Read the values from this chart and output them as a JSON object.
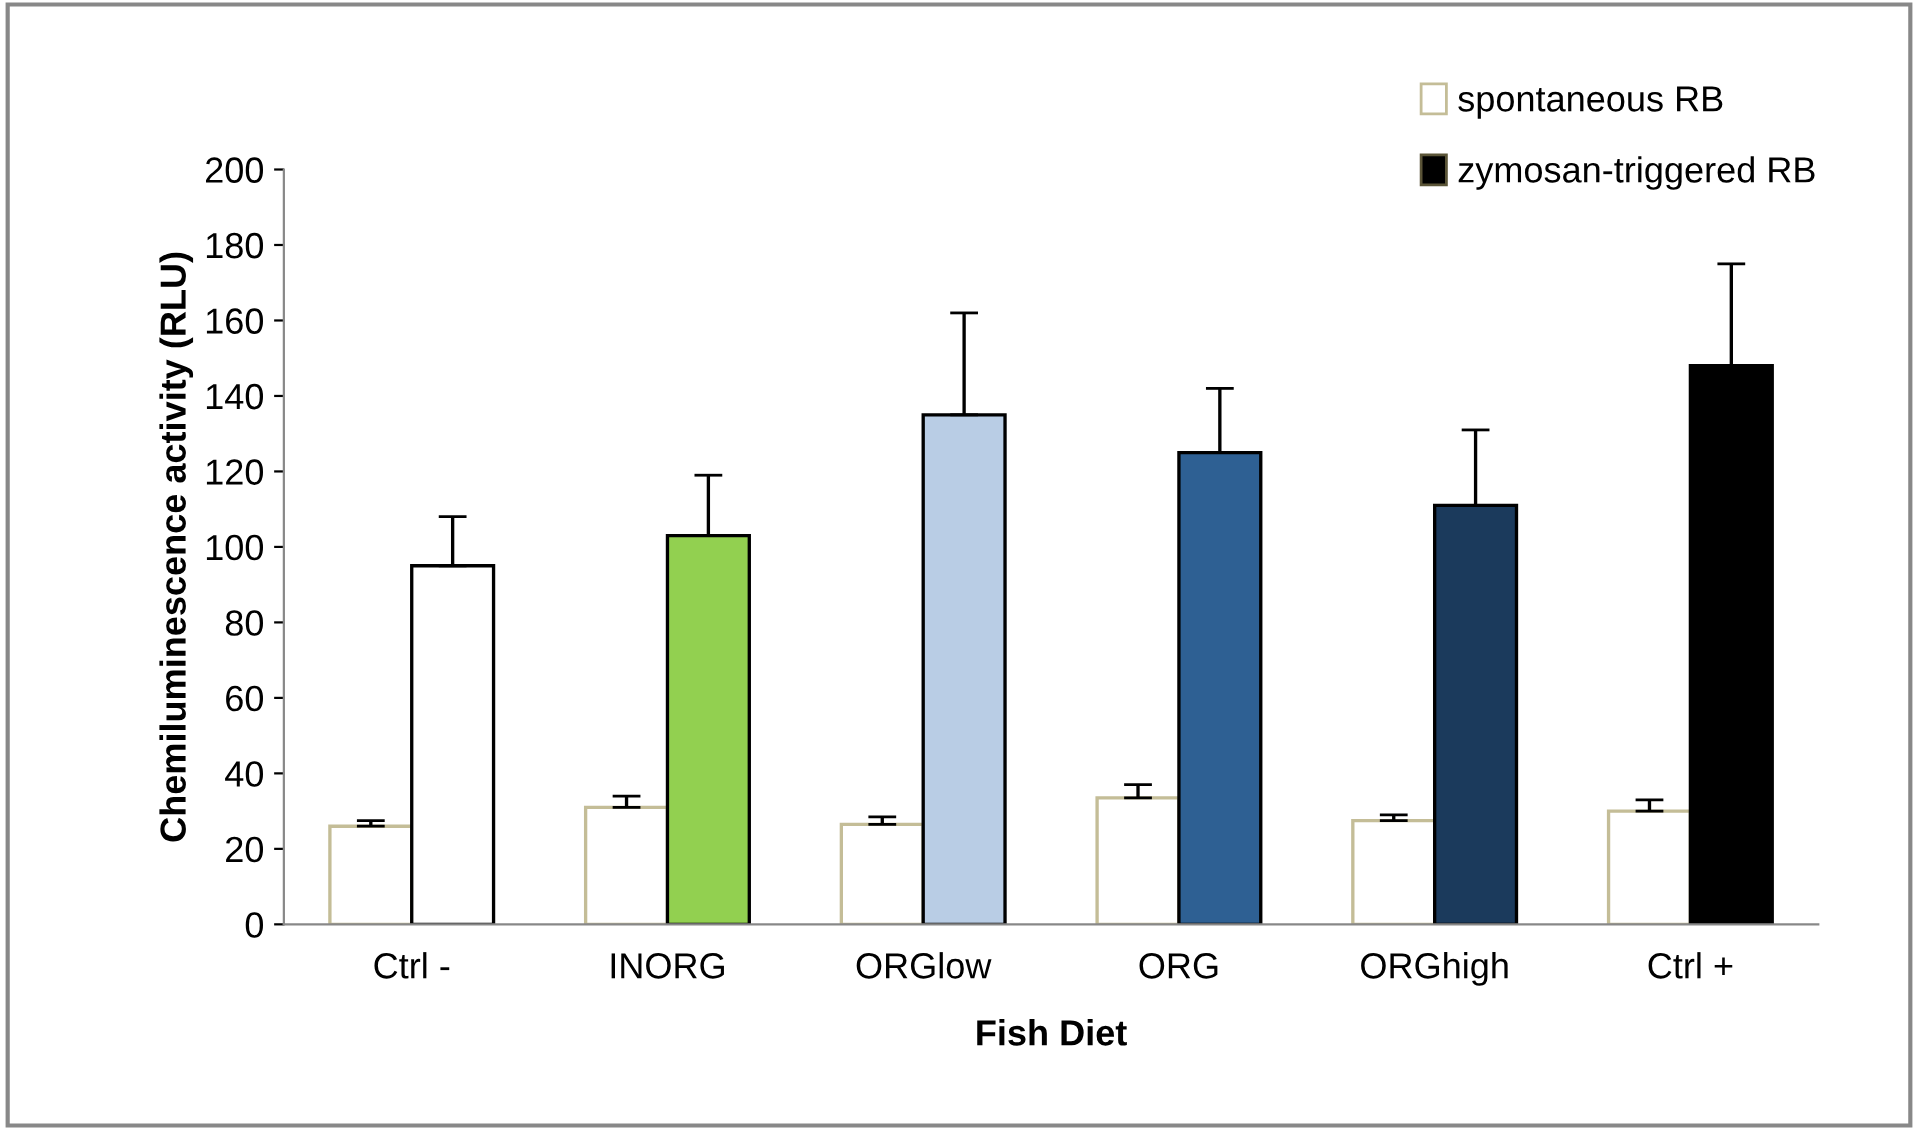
{
  "chart_data": {
    "type": "bar",
    "xlabel": "Fish Diet",
    "ylabel": "Chemiluminescence activity (RLU)",
    "categories": [
      "Ctrl -",
      "INORG",
      "ORGlow",
      "ORG",
      "ORGhigh",
      "Ctrl +"
    ],
    "series": [
      {
        "name": "spontaneous RB",
        "color": "#ffffff",
        "values": [
          26,
          31,
          26.5,
          33.5,
          27.5,
          30
        ],
        "errors": [
          [
            26,
            27.5
          ],
          [
            31,
            34
          ],
          [
            26.5,
            28.5
          ],
          [
            33.5,
            37
          ],
          [
            27.5,
            29
          ],
          [
            30,
            33
          ]
        ]
      },
      {
        "name": "zymosan-triggered RB",
        "color": "#000000",
        "colors": [
          "#ffffff",
          "#92d050",
          "#b9cde5",
          "#2e6093",
          "#1b3a5c",
          "#000000"
        ],
        "values": [
          95,
          103,
          135,
          125,
          111,
          148
        ],
        "errors": [
          [
            95,
            108
          ],
          [
            103,
            119
          ],
          [
            135,
            162
          ],
          [
            125,
            142
          ],
          [
            111,
            131
          ],
          [
            148,
            175
          ]
        ]
      }
    ],
    "ylim": [
      0,
      200
    ],
    "yticks": [
      0,
      20,
      40,
      60,
      80,
      100,
      120,
      140,
      160,
      180,
      200
    ],
    "grid": false,
    "legend": "top right"
  }
}
